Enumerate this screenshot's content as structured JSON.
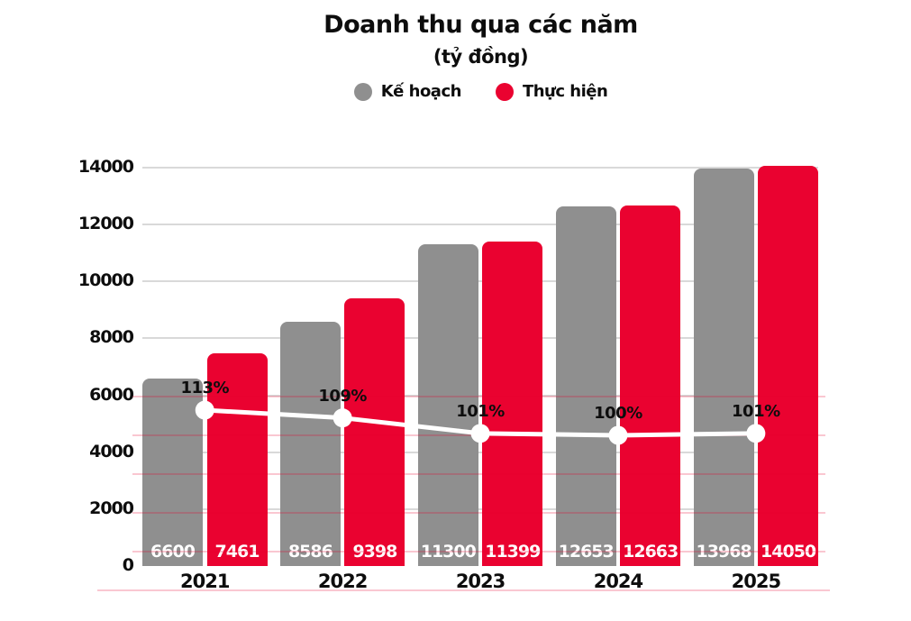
{
  "header": {
    "title": "Doanh thu qua các năm",
    "subtitle": "(tỷ đồng)"
  },
  "legend": {
    "items": [
      {
        "label": "Kế hoạch",
        "color": "#8f8f8f"
      },
      {
        "label": "Thực hiện",
        "color": "#ea0230"
      }
    ]
  },
  "chart_data": {
    "type": "bar",
    "title": "Doanh thu qua các năm",
    "subtitle": "(tỷ đồng)",
    "categories": [
      "2021",
      "2022",
      "2023",
      "2024",
      "2025"
    ],
    "series": [
      {
        "name": "Kế hoạch",
        "type": "bar",
        "color": "#8f8f8f",
        "values": [
          6600,
          8586,
          11300,
          12653,
          13968
        ]
      },
      {
        "name": "Thực hiện",
        "type": "bar",
        "color": "#ea0230",
        "values": [
          7461,
          9398,
          11399,
          12663,
          14050
        ]
      },
      {
        "type": "line",
        "color": "#ffffff",
        "values": [
          113,
          109,
          101,
          100,
          101
        ],
        "labels": [
          "113%",
          "109%",
          "101%",
          "100%",
          "101%"
        ]
      }
    ],
    "ylim": [
      0,
      14000
    ],
    "yticks": [
      0,
      2000,
      4000,
      6000,
      8000,
      10000,
      12000,
      14000
    ],
    "grid": {
      "on": true,
      "primary_color": "#d9d9d9",
      "secondary_color": "#ea022f",
      "secondary_pct_lines": [
        120,
        100,
        80,
        60,
        40,
        20
      ]
    },
    "legend_position": "top"
  }
}
